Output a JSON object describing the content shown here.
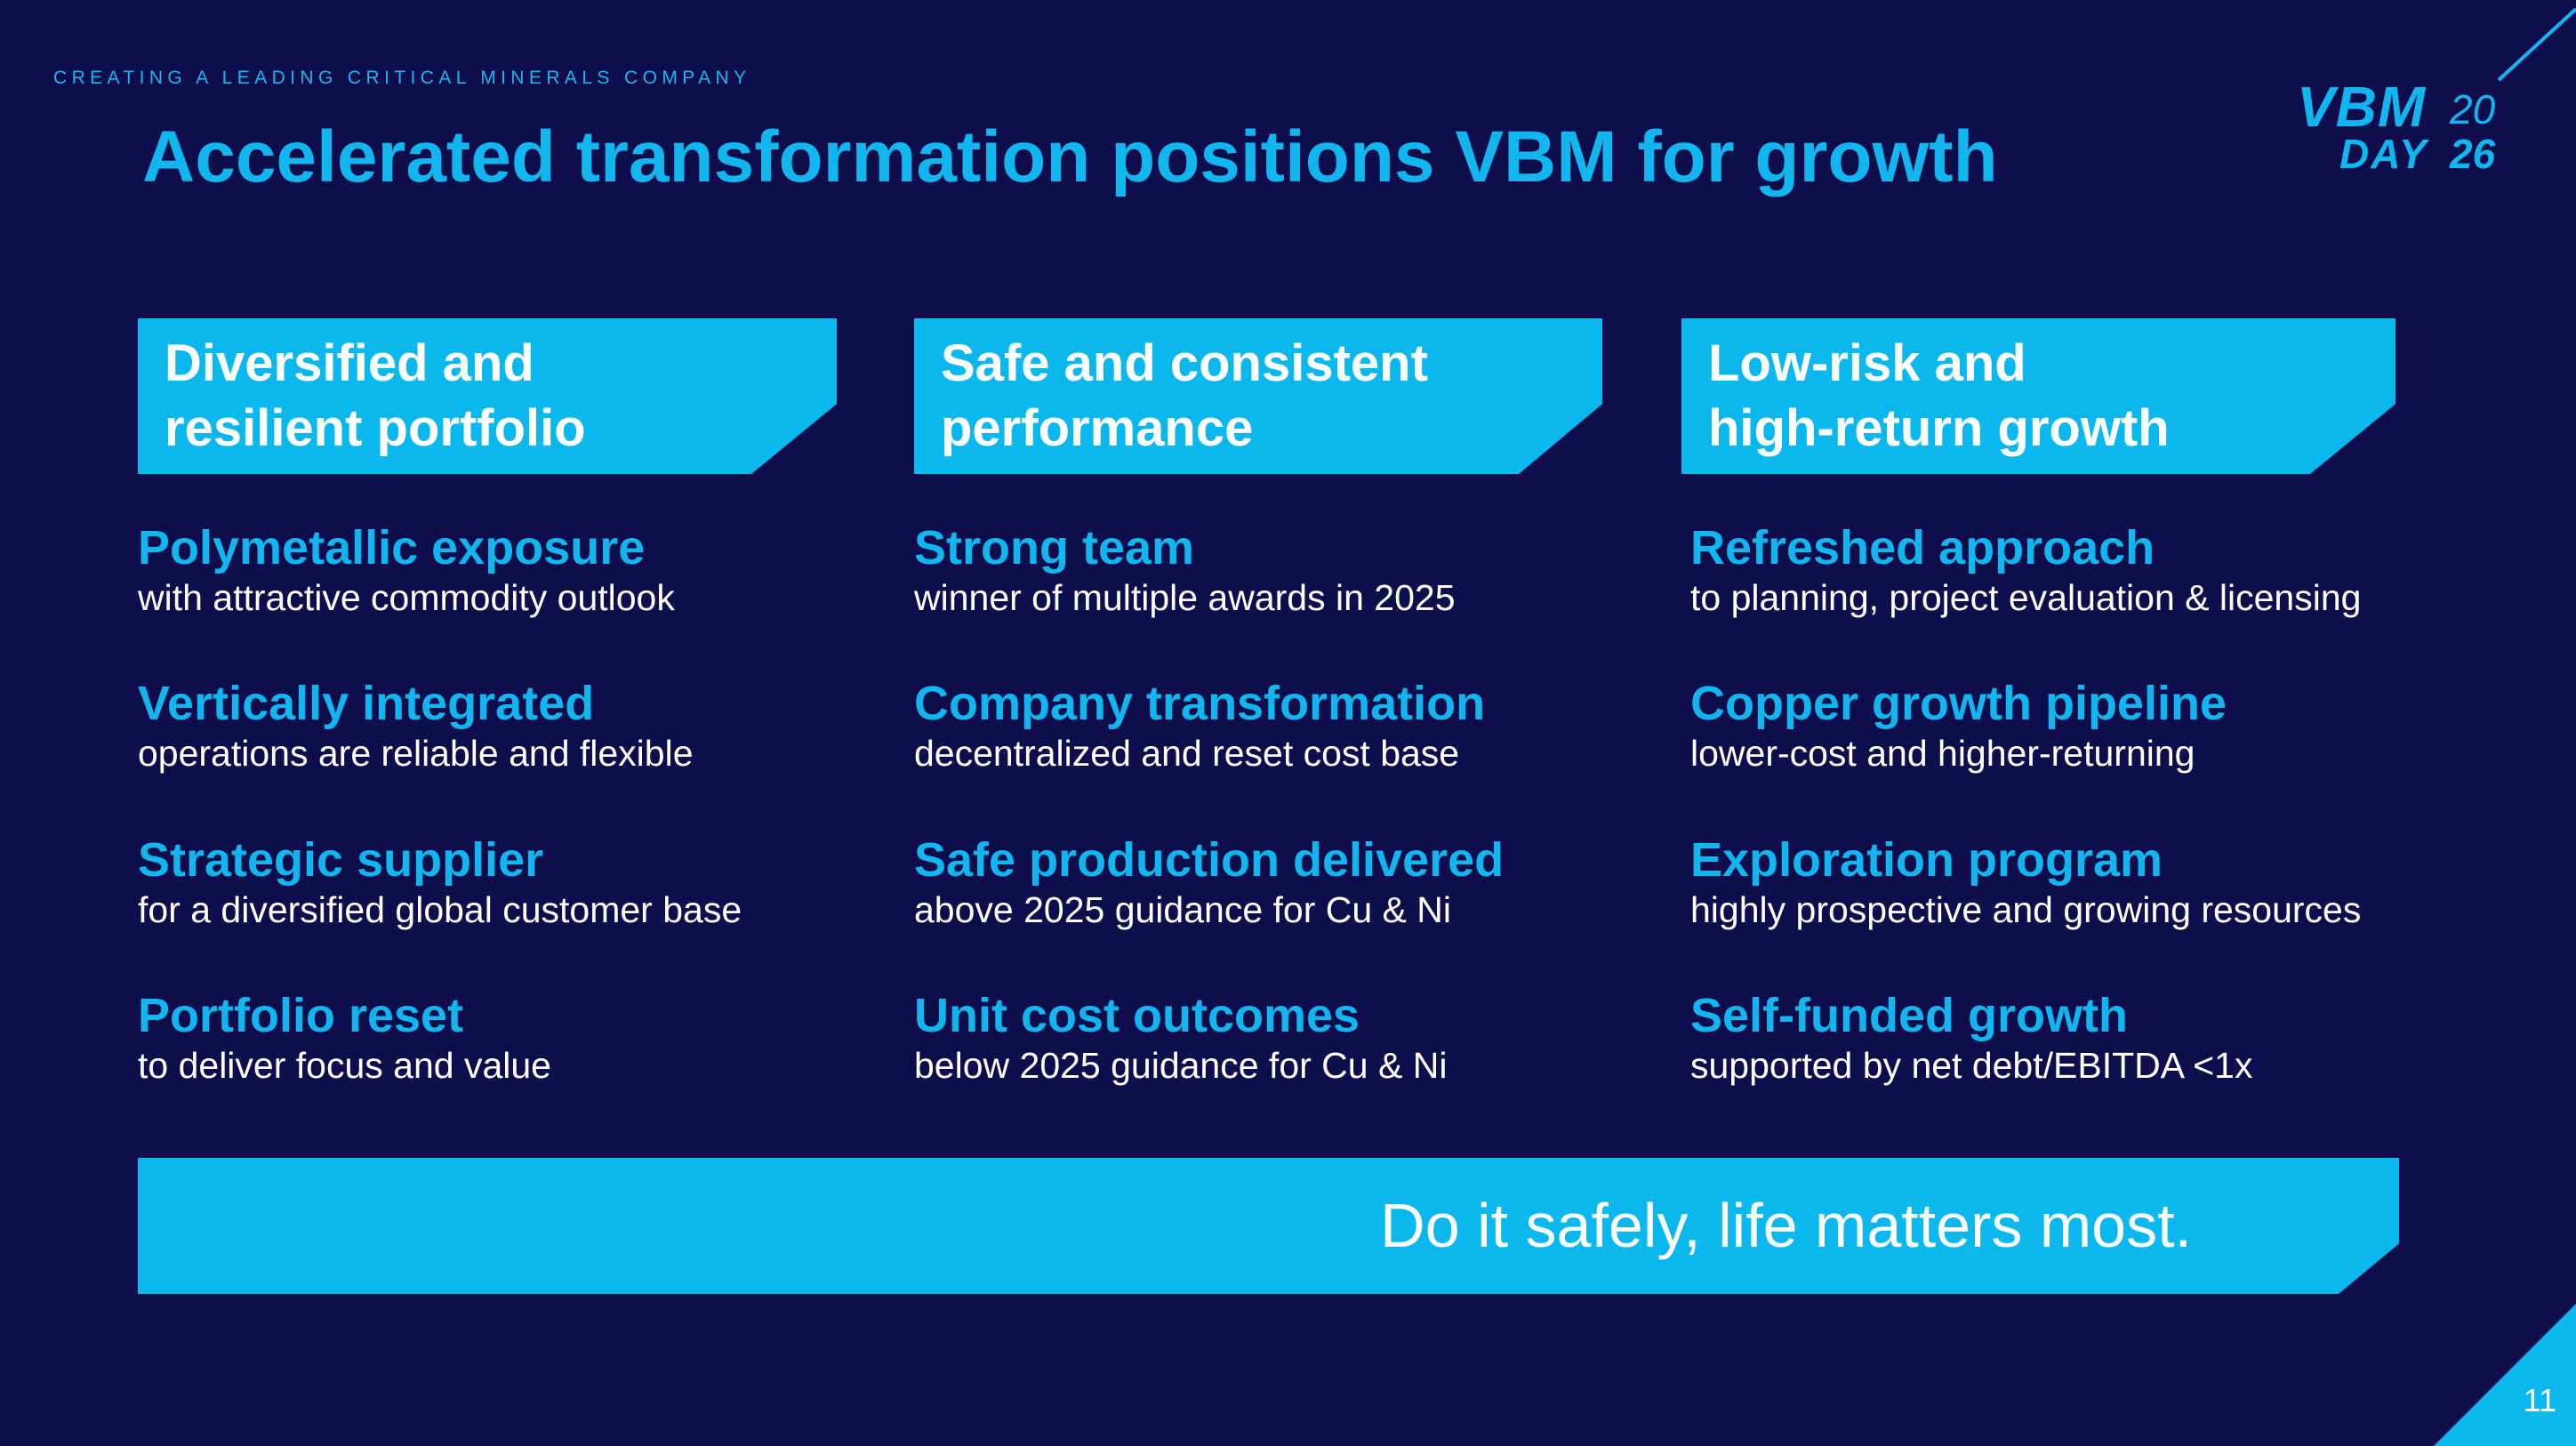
{
  "header": {
    "kicker": "CREATING A LEADING CRITICAL MINERALS COMPANY",
    "title": "Accelerated transformation positions VBM for growth"
  },
  "logo": {
    "brand": "VBM",
    "day": "DAY",
    "year_top": "20",
    "year_bottom": "26"
  },
  "columns": [
    {
      "header_line1": "Diversified and",
      "header_line2": "resilient portfolio",
      "items": [
        {
          "title": "Polymetallic exposure",
          "subtitle": "with attractive commodity outlook"
        },
        {
          "title": "Vertically integrated",
          "subtitle": "operations are reliable and flexible"
        },
        {
          "title": "Strategic supplier",
          "subtitle": "for a diversified global customer base"
        },
        {
          "title": "Portfolio reset",
          "subtitle": "to deliver focus and value"
        }
      ]
    },
    {
      "header_line1": "Safe and consistent",
      "header_line2": "performance",
      "items": [
        {
          "title": "Strong team",
          "subtitle": "winner of multiple awards in 2025"
        },
        {
          "title": "Company transformation",
          "subtitle": "decentralized and reset cost base"
        },
        {
          "title": "Safe production delivered",
          "subtitle": "above 2025 guidance for Cu & Ni"
        },
        {
          "title": "Unit cost outcomes",
          "subtitle": "below 2025 guidance for Cu & Ni"
        }
      ]
    },
    {
      "header_line1": "Low-risk and",
      "header_line2": "high-return growth",
      "items": [
        {
          "title": "Refreshed approach",
          "subtitle": "to planning, project evaluation & licensing"
        },
        {
          "title": "Copper growth pipeline",
          "subtitle": "lower-cost and higher-returning"
        },
        {
          "title": "Exploration program",
          "subtitle": "highly prospective and growing resources"
        },
        {
          "title": "Self-funded growth",
          "subtitle": "supported by net debt/EBITDA <1x"
        }
      ]
    }
  ],
  "banner": {
    "message": "Do it safely, life matters most."
  },
  "footer": {
    "page_number": "11"
  },
  "colors": {
    "background": "#0e0e4d",
    "accent": "#0bb8ee",
    "heading": "#12b6ee",
    "text": "#ffffff"
  }
}
